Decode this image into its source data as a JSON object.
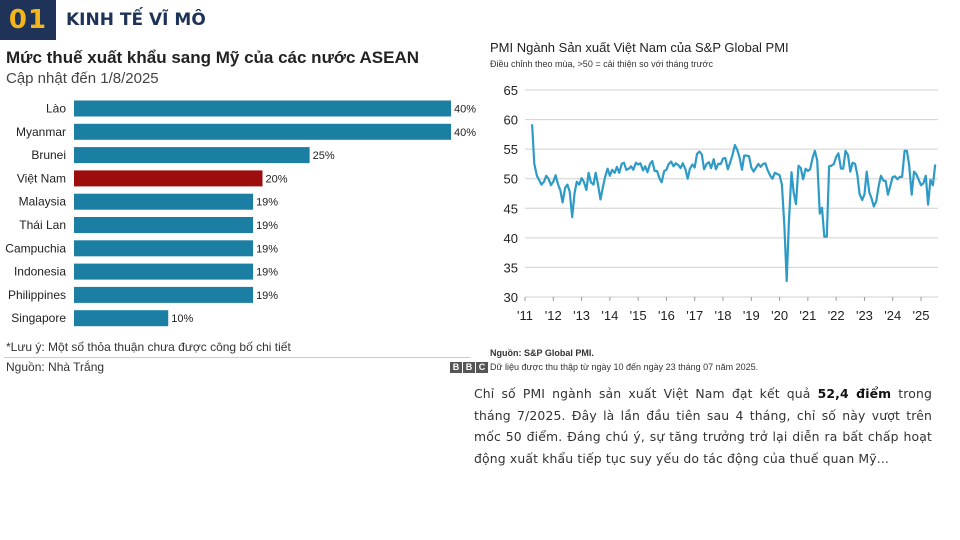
{
  "section": {
    "number": "01",
    "title": "KINH TẾ VĨ MÔ",
    "accent": "#f4b51c",
    "navy": "#1f3358"
  },
  "bar_panel": {
    "note": "*Lưu ý: Một số thỏa thuận chưa được công bố chi tiết",
    "source": "Nguồn: Nhà Trắng",
    "logo_letters": [
      "B",
      "B",
      "C"
    ]
  },
  "pmi_panel": {
    "source": "Nguồn: S&P Global PMI.",
    "note": "Dữ liệu được thu thập từ ngày 10 đến ngày 23 tháng 07 năm 2025."
  },
  "paragraph": {
    "before": "Chỉ số PMI ngành sản xuất Việt Nam đạt kết quả ",
    "bold": "52,4 điểm",
    "after": " trong tháng 7/2025. Đây là lần đầu tiên sau 4 tháng, chỉ số này vượt trên mốc 50 điểm. Đáng chú ý, sự tăng trưởng trở lại diễn ra bất chấp hoạt động xuất khẩu tiếp tục suy yếu do tác động của thuế quan Mỹ..."
  },
  "chart_data": [
    {
      "type": "bar",
      "orientation": "horizontal",
      "title": "Mức thuế xuất khẩu sang Mỹ của các nước ASEAN",
      "subtitle": "Cập nhật đến 1/8/2025",
      "categories": [
        "Lào",
        "Myanmar",
        "Brunei",
        "Việt Nam",
        "Malaysia",
        "Thái Lan",
        "Campuchia",
        "Indonesia",
        "Philippines",
        "Singapore"
      ],
      "values": [
        40,
        40,
        25,
        20,
        19,
        19,
        19,
        19,
        19,
        10
      ],
      "value_labels": [
        "40%",
        "40%",
        "25%",
        "20%",
        "19%",
        "19%",
        "19%",
        "19%",
        "19%",
        "10%"
      ],
      "xlim": [
        0,
        40
      ],
      "colors": {
        "default": "#1a7fa3",
        "highlight": "#9c0e0e"
      },
      "highlight_category": "Việt Nam",
      "grid": false
    },
    {
      "type": "line",
      "title": "PMI Ngành Sản xuất Việt Nam của S&P Global PMI",
      "subtitle": "Điều chỉnh theo mùa, >50 = cải thiện so với tháng trước",
      "color": "#2e9bc6",
      "ylim": [
        30,
        65
      ],
      "yticks": [
        30,
        35,
        40,
        45,
        50,
        55,
        60,
        65
      ],
      "xlim": [
        2011,
        2025.6
      ],
      "xticks": [
        "'11",
        "'12",
        "'13",
        "'14",
        "'15",
        "'16",
        "'17",
        "'18",
        "'19",
        "'20",
        "'21",
        "'22",
        "'23",
        "'24",
        "'25"
      ],
      "grid": "horizontal",
      "points": [
        [
          2011.25,
          59.2
        ],
        [
          2011.33,
          52.5
        ],
        [
          2011.42,
          50.5
        ],
        [
          2011.5,
          49.8
        ],
        [
          2011.58,
          49.0
        ],
        [
          2011.67,
          49.5
        ],
        [
          2011.75,
          50.5
        ],
        [
          2011.83,
          50.0
        ],
        [
          2011.92,
          48.9
        ],
        [
          2012.0,
          49.5
        ],
        [
          2012.08,
          50.6
        ],
        [
          2012.17,
          49.0
        ],
        [
          2012.25,
          48.0
        ],
        [
          2012.33,
          46.0
        ],
        [
          2012.42,
          48.5
        ],
        [
          2012.5,
          49.0
        ],
        [
          2012.58,
          47.8
        ],
        [
          2012.67,
          43.5
        ],
        [
          2012.75,
          47.5
        ],
        [
          2012.83,
          49.5
        ],
        [
          2012.92,
          49.0
        ],
        [
          2013.0,
          50.1
        ],
        [
          2013.08,
          49.5
        ],
        [
          2013.17,
          48.1
        ],
        [
          2013.25,
          51.0
        ],
        [
          2013.33,
          49.4
        ],
        [
          2013.42,
          49.0
        ],
        [
          2013.5,
          51.0
        ],
        [
          2013.58,
          49.0
        ],
        [
          2013.67,
          46.5
        ],
        [
          2013.75,
          48.5
        ],
        [
          2013.83,
          50.3
        ],
        [
          2013.92,
          51.7
        ],
        [
          2014.0,
          50.5
        ],
        [
          2014.08,
          51.5
        ],
        [
          2014.17,
          51.0
        ],
        [
          2014.25,
          52.0
        ],
        [
          2014.33,
          51.0
        ],
        [
          2014.42,
          52.5
        ],
        [
          2014.5,
          52.7
        ],
        [
          2014.58,
          51.5
        ],
        [
          2014.67,
          51.7
        ],
        [
          2014.75,
          52.1
        ],
        [
          2014.83,
          51.5
        ],
        [
          2014.92,
          52.7
        ],
        [
          2015.0,
          52.4
        ],
        [
          2015.08,
          52.6
        ],
        [
          2015.17,
          51.4
        ],
        [
          2015.25,
          52.1
        ],
        [
          2015.33,
          51.1
        ],
        [
          2015.42,
          52.5
        ],
        [
          2015.5,
          53.0
        ],
        [
          2015.58,
          51.3
        ],
        [
          2015.67,
          51.3
        ],
        [
          2015.75,
          50.1
        ],
        [
          2015.83,
          49.4
        ],
        [
          2015.92,
          51.3
        ],
        [
          2016.0,
          51.5
        ],
        [
          2016.08,
          52.5
        ],
        [
          2016.17,
          52.9
        ],
        [
          2016.25,
          52.1
        ],
        [
          2016.33,
          52.6
        ],
        [
          2016.42,
          52.3
        ],
        [
          2016.5,
          51.8
        ],
        [
          2016.58,
          52.6
        ],
        [
          2016.67,
          51.6
        ],
        [
          2016.75,
          50.0
        ],
        [
          2016.83,
          51.7
        ],
        [
          2016.92,
          52.4
        ],
        [
          2017.0,
          51.9
        ],
        [
          2017.08,
          54.2
        ],
        [
          2017.17,
          54.6
        ],
        [
          2017.25,
          54.1
        ],
        [
          2017.33,
          51.6
        ],
        [
          2017.42,
          52.5
        ],
        [
          2017.5,
          52.8
        ],
        [
          2017.58,
          51.8
        ],
        [
          2017.67,
          53.3
        ],
        [
          2017.75,
          51.6
        ],
        [
          2017.83,
          52.5
        ],
        [
          2017.92,
          52.5
        ],
        [
          2018.0,
          53.4
        ],
        [
          2018.08,
          53.5
        ],
        [
          2018.17,
          51.6
        ],
        [
          2018.25,
          52.7
        ],
        [
          2018.33,
          53.9
        ],
        [
          2018.42,
          55.7
        ],
        [
          2018.5,
          54.9
        ],
        [
          2018.58,
          53.7
        ],
        [
          2018.67,
          51.5
        ],
        [
          2018.75,
          53.9
        ],
        [
          2018.83,
          53.9
        ],
        [
          2018.92,
          53.8
        ],
        [
          2019.0,
          51.9
        ],
        [
          2019.08,
          51.2
        ],
        [
          2019.17,
          51.9
        ],
        [
          2019.25,
          52.5
        ],
        [
          2019.33,
          52.0
        ],
        [
          2019.42,
          52.5
        ],
        [
          2019.5,
          52.6
        ],
        [
          2019.58,
          51.4
        ],
        [
          2019.67,
          50.5
        ],
        [
          2019.75,
          50.0
        ],
        [
          2019.83,
          51.0
        ],
        [
          2019.92,
          50.8
        ],
        [
          2020.0,
          50.6
        ],
        [
          2020.08,
          49.0
        ],
        [
          2020.17,
          41.9
        ],
        [
          2020.25,
          32.7
        ],
        [
          2020.33,
          42.7
        ],
        [
          2020.42,
          51.1
        ],
        [
          2020.5,
          47.6
        ],
        [
          2020.58,
          45.7
        ],
        [
          2020.67,
          52.2
        ],
        [
          2020.75,
          51.8
        ],
        [
          2020.83,
          49.9
        ],
        [
          2020.92,
          51.7
        ],
        [
          2021.0,
          51.3
        ],
        [
          2021.08,
          51.6
        ],
        [
          2021.17,
          53.6
        ],
        [
          2021.25,
          54.7
        ],
        [
          2021.33,
          53.1
        ],
        [
          2021.42,
          44.1
        ],
        [
          2021.5,
          45.1
        ],
        [
          2021.58,
          40.2
        ],
        [
          2021.67,
          40.2
        ],
        [
          2021.75,
          52.1
        ],
        [
          2021.83,
          52.2
        ],
        [
          2021.92,
          52.5
        ],
        [
          2022.0,
          53.7
        ],
        [
          2022.08,
          54.3
        ],
        [
          2022.17,
          51.7
        ],
        [
          2022.25,
          51.7
        ],
        [
          2022.33,
          54.7
        ],
        [
          2022.42,
          54.0
        ],
        [
          2022.5,
          51.2
        ],
        [
          2022.58,
          52.7
        ],
        [
          2022.67,
          52.5
        ],
        [
          2022.75,
          50.6
        ],
        [
          2022.83,
          47.4
        ],
        [
          2022.92,
          46.4
        ],
        [
          2023.0,
          47.4
        ],
        [
          2023.08,
          51.2
        ],
        [
          2023.17,
          47.7
        ],
        [
          2023.25,
          46.7
        ],
        [
          2023.33,
          45.3
        ],
        [
          2023.42,
          46.2
        ],
        [
          2023.5,
          48.7
        ],
        [
          2023.58,
          50.5
        ],
        [
          2023.67,
          49.7
        ],
        [
          2023.75,
          49.6
        ],
        [
          2023.83,
          47.3
        ],
        [
          2023.92,
          48.9
        ],
        [
          2024.0,
          50.3
        ],
        [
          2024.08,
          50.4
        ],
        [
          2024.17,
          49.9
        ],
        [
          2024.25,
          50.3
        ],
        [
          2024.33,
          50.3
        ],
        [
          2024.42,
          54.7
        ],
        [
          2024.5,
          54.7
        ],
        [
          2024.58,
          52.4
        ],
        [
          2024.67,
          47.3
        ],
        [
          2024.75,
          51.2
        ],
        [
          2024.83,
          50.8
        ],
        [
          2024.92,
          49.8
        ],
        [
          2025.0,
          48.9
        ],
        [
          2025.08,
          49.2
        ],
        [
          2025.17,
          50.5
        ],
        [
          2025.25,
          45.6
        ],
        [
          2025.33,
          49.8
        ],
        [
          2025.42,
          48.9
        ],
        [
          2025.5,
          52.4
        ]
      ]
    }
  ]
}
